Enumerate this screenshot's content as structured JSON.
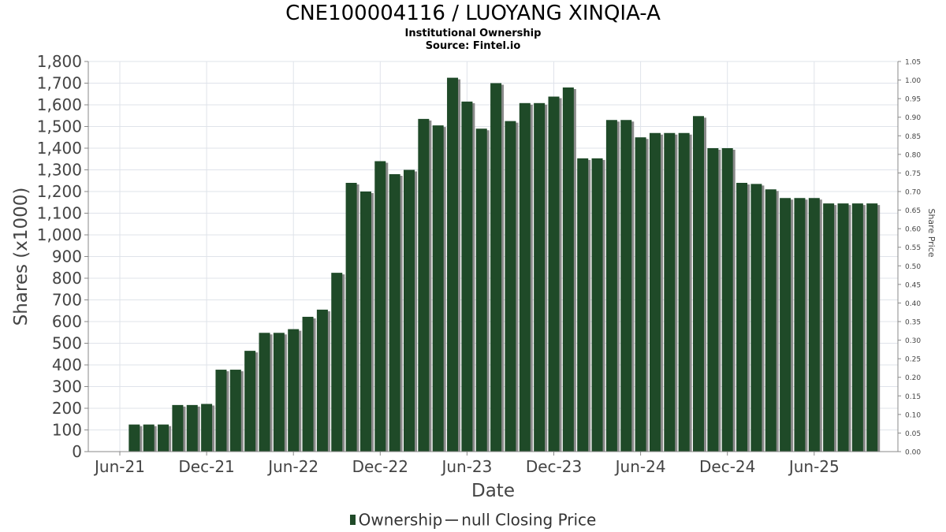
{
  "header": {
    "title": "CNE100004116 / LUOYANG XINQIA-A",
    "subtitle1": "Institutional Ownership",
    "subtitle2": "Source: Fintel.io"
  },
  "legend": {
    "ownership_label": "Ownership",
    "price_label": "null Closing Price"
  },
  "colors": {
    "bar": "#1f4a28",
    "bar_shadow": "#8a8a8a",
    "grid": "#dfe3ea",
    "axis": "#888888"
  },
  "chart_data": {
    "type": "bar",
    "title": "CNE100004116 / LUOYANG XINQIA-A",
    "xlabel": "Date",
    "ylabel": "Shares (x1000)",
    "y2label": "Share Price",
    "ylim": [
      0,
      1800
    ],
    "y2lim": [
      0,
      1.05
    ],
    "yticks": [
      "0",
      "100",
      "200",
      "300",
      "400",
      "500",
      "600",
      "700",
      "800",
      "900",
      "1,000",
      "1,100",
      "1,200",
      "1,300",
      "1,400",
      "1,500",
      "1,600",
      "1,700",
      "1,800"
    ],
    "y2ticks": [
      "0.00",
      "0.05",
      "0.10",
      "0.15",
      "0.20",
      "0.25",
      "0.30",
      "0.35",
      "0.40",
      "0.45",
      "0.50",
      "0.55",
      "0.60",
      "0.65",
      "0.70",
      "0.75",
      "0.80",
      "0.85",
      "0.90",
      "0.95",
      "1.00",
      "1.05"
    ],
    "xticks": [
      "Jun-21",
      "Dec-21",
      "Jun-22",
      "Dec-22",
      "Jun-23",
      "Dec-23",
      "Jun-24",
      "Dec-24",
      "Jun-25"
    ],
    "xtick_months": [
      0,
      6,
      12,
      18,
      24,
      30,
      36,
      42,
      48
    ],
    "x_start": "Jun-21",
    "grid": true,
    "legend_position": "bottom",
    "series": [
      {
        "name": "Ownership",
        "x_months": [
          1,
          2,
          3,
          4,
          5,
          6,
          7,
          8,
          9,
          10,
          11,
          12,
          13,
          14,
          15,
          16,
          17,
          18,
          19,
          20,
          21,
          22,
          23,
          24,
          25,
          26,
          27,
          28,
          29,
          30,
          31,
          32,
          33,
          34,
          35,
          36,
          37,
          38,
          39,
          40,
          41,
          42,
          43,
          44,
          45,
          46,
          47,
          48,
          49,
          50,
          51,
          52
        ],
        "values": [
          125,
          125,
          125,
          215,
          215,
          220,
          378,
          378,
          465,
          548,
          548,
          565,
          622,
          655,
          825,
          1240,
          1200,
          1340,
          1280,
          1300,
          1535,
          1505,
          1725,
          1615,
          1490,
          1700,
          1525,
          1608,
          1608,
          1638,
          1680,
          1353,
          1353,
          1530,
          1530,
          1450,
          1470,
          1470,
          1470,
          1548,
          1400,
          1400,
          1240,
          1235,
          1210,
          1170,
          1170,
          1170,
          1145,
          1145,
          1145,
          1145
        ]
      }
    ]
  }
}
